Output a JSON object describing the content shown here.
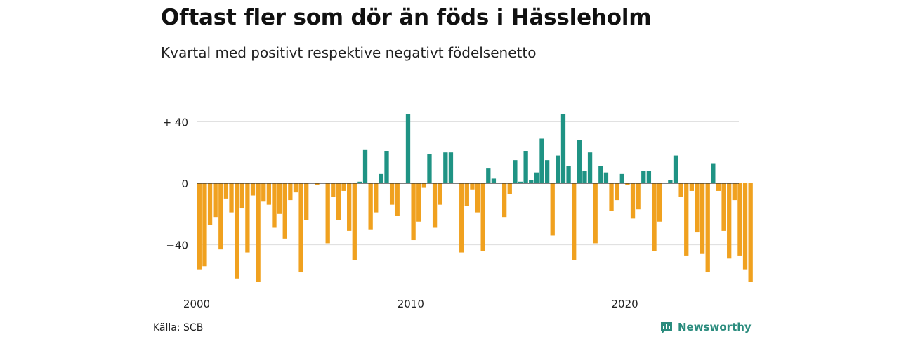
{
  "header": {
    "title": "Oftast fler som dör än föds i Hässleholm",
    "subtitle": "Kvartal med positivt respektive negativt födelsenetto"
  },
  "footer": {
    "source": "Källa: SCB",
    "brand": "Newsworthy",
    "brand_icon": "newsworthy-logo-icon"
  },
  "colors": {
    "positive": "#1f9384",
    "negative": "#f0a11f",
    "grid": "#dddddd",
    "baseline": "#333333"
  },
  "chart_data": {
    "type": "bar",
    "title": "Oftast fler som dör än föds i Hässleholm",
    "subtitle": "Kvartal med positivt respektive negativt födelsenetto",
    "xlabel": "",
    "ylabel": "",
    "ylim": [
      -65,
      45
    ],
    "grid": true,
    "legend": "none",
    "x_tick_labels": [
      "2000",
      "2010",
      "2020"
    ],
    "y_ticks": [
      {
        "value": 40,
        "label": "+ 40"
      },
      {
        "value": 0,
        "label": "0"
      },
      {
        "value": -40,
        "label": "−40"
      }
    ],
    "start_year": 2000,
    "values": [
      -56,
      -54,
      -27,
      -22,
      -43,
      -10,
      -19,
      -62,
      -16,
      -45,
      -8,
      -64,
      -12,
      -14,
      -29,
      -20,
      -36,
      -11,
      -6,
      -58,
      -24,
      0,
      -1,
      0,
      -39,
      -9,
      -24,
      -5,
      -31,
      -50,
      1,
      22,
      -30,
      -19,
      6,
      21,
      -14,
      -21,
      0,
      45,
      -37,
      -25,
      -3,
      19,
      -29,
      -14,
      20,
      20,
      0,
      -45,
      -15,
      -4,
      -19,
      -44,
      10,
      3,
      0,
      -22,
      -7,
      15,
      1,
      21,
      2,
      7,
      29,
      15,
      -34,
      18,
      45,
      11,
      -50,
      28,
      8,
      20,
      -39,
      11,
      7,
      -18,
      -11,
      6,
      -1,
      -23,
      -17,
      8,
      8,
      -44,
      -25,
      0,
      2,
      18,
      -9,
      -47,
      -5,
      -32,
      -46,
      -58,
      13,
      -5,
      -31,
      -49,
      -11,
      -47,
      -56,
      -64
    ]
  }
}
